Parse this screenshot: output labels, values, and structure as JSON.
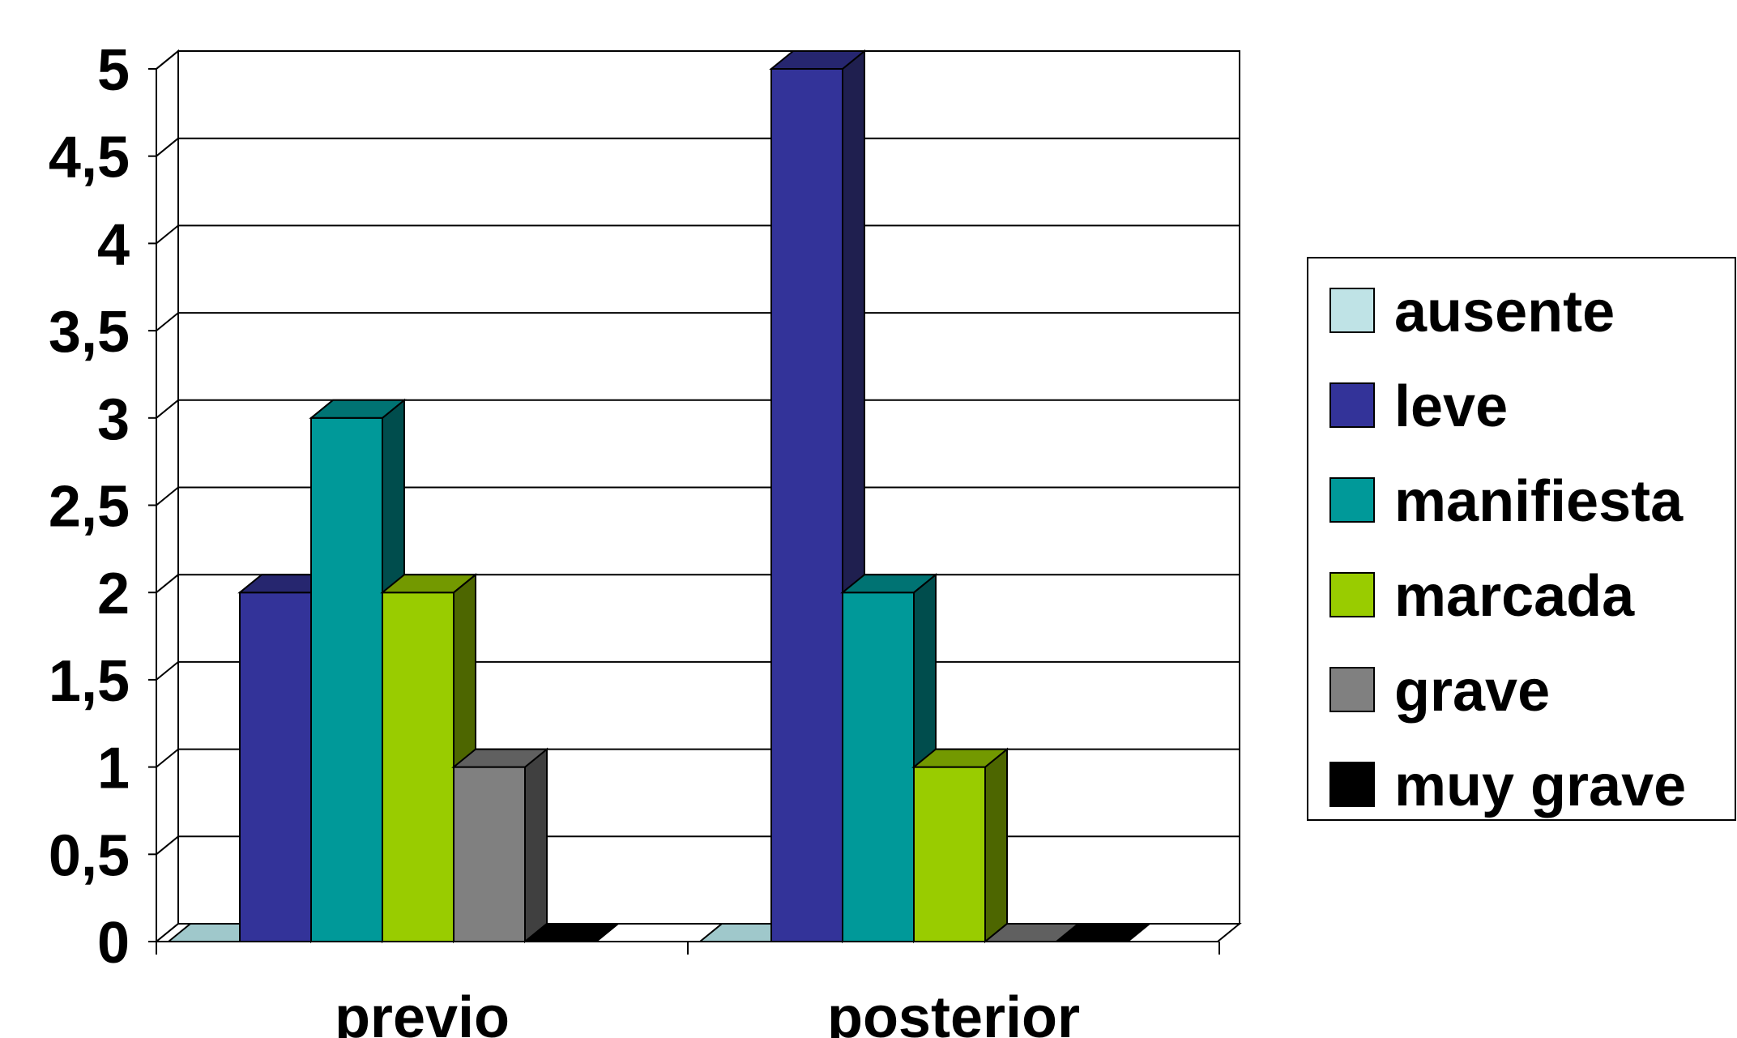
{
  "chart_data": {
    "type": "bar",
    "style": "3d-clustered-column",
    "categories": [
      "previo",
      "posterior"
    ],
    "series": [
      {
        "name": "ausente",
        "values": [
          0,
          0
        ],
        "color": "#BFE3E6",
        "side_color": "#7FA8AB",
        "top_color": "#9FC8CB"
      },
      {
        "name": "leve",
        "values": [
          2,
          5
        ],
        "color": "#333399",
        "side_color": "#1F1F4F",
        "top_color": "#26266F"
      },
      {
        "name": "manifiesta",
        "values": [
          3,
          2
        ],
        "color": "#009999",
        "side_color": "#004D4D",
        "top_color": "#007373"
      },
      {
        "name": "marcada",
        "values": [
          2,
          1
        ],
        "color": "#99CC00",
        "side_color": "#4D6600",
        "top_color": "#739900"
      },
      {
        "name": "grave",
        "values": [
          1,
          0
        ],
        "color": "#808080",
        "side_color": "#404040",
        "top_color": "#606060"
      },
      {
        "name": "muy grave",
        "values": [
          0,
          0
        ],
        "color": "#000000",
        "side_color": "#000000",
        "top_color": "#000000"
      }
    ],
    "y_ticks": [
      "0",
      "0,5",
      "1",
      "1,5",
      "2",
      "2,5",
      "3",
      "3,5",
      "4",
      "4,5",
      "5"
    ],
    "ylim": [
      0,
      5
    ],
    "y_step": 0.5,
    "grid": true,
    "legend_position": "right",
    "title": "",
    "xlabel": "",
    "ylabel": ""
  }
}
